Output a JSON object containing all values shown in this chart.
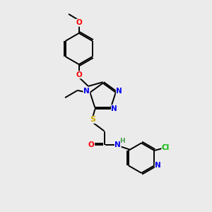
{
  "bg_color": "#ebebeb",
  "bond_color": "#000000",
  "atom_colors": {
    "N": "#0000ee",
    "O": "#ff0000",
    "S": "#ccaa00",
    "Cl": "#00bb00",
    "C": "#000000",
    "H": "#4a9a4a"
  },
  "figsize": [
    3.0,
    3.0
  ],
  "dpi": 100
}
